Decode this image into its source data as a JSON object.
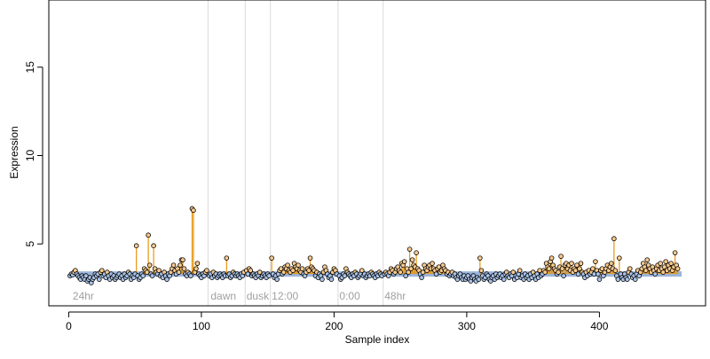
{
  "chart_data": {
    "type": "scatter",
    "xlabel": "Sample index",
    "ylabel": "Expression",
    "xlim": [
      -15,
      480
    ],
    "ylim": [
      1.5,
      18.8
    ],
    "x_ticks": [
      0,
      100,
      200,
      300,
      400
    ],
    "y_ticks": [
      5,
      10,
      15
    ],
    "baseline": 3.3,
    "baseline_color": "#7b9ccf",
    "stem_color": "#e8940f",
    "high_point_fill": "#f7c98e",
    "low_point_fill": "#a9c3e8",
    "vertical_lines": [
      105,
      133,
      152,
      203,
      237
    ],
    "region_labels": [
      {
        "x": 3,
        "text": "24hr"
      },
      {
        "x": 107,
        "text": "dawn"
      },
      {
        "x": 134,
        "text": "dusk"
      },
      {
        "x": 153,
        "text": "12:00"
      },
      {
        "x": 204,
        "text": "0:00"
      },
      {
        "x": 238,
        "text": "48hr"
      }
    ],
    "points": [
      [
        1,
        3.2
      ],
      [
        2,
        3.3
      ],
      [
        3,
        3.25
      ],
      [
        4,
        3.4
      ],
      [
        5,
        3.5
      ],
      [
        6,
        3.3
      ],
      [
        7,
        3.2
      ],
      [
        8,
        3.1
      ],
      [
        9,
        3.0
      ],
      [
        10,
        3.2
      ],
      [
        11,
        3.1
      ],
      [
        12,
        3.0
      ],
      [
        13,
        3.2
      ],
      [
        14,
        2.9
      ],
      [
        15,
        3.0
      ],
      [
        16,
        3.1
      ],
      [
        17,
        2.8
      ],
      [
        18,
        3.0
      ],
      [
        19,
        3.1
      ],
      [
        20,
        3.3
      ],
      [
        21,
        3.2
      ],
      [
        22,
        3.3
      ],
      [
        23,
        3.0
      ],
      [
        24,
        3.4
      ],
      [
        25,
        3.5
      ],
      [
        26,
        3.2
      ],
      [
        27,
        3.3
      ],
      [
        28,
        3.1
      ],
      [
        29,
        3.4
      ],
      [
        30,
        3.2
      ],
      [
        31,
        3.0
      ],
      [
        32,
        3.3
      ],
      [
        33,
        3.1
      ],
      [
        34,
        3.2
      ],
      [
        35,
        3.0
      ],
      [
        36,
        3.1
      ],
      [
        37,
        3.2
      ],
      [
        38,
        3.3
      ],
      [
        39,
        3.1
      ],
      [
        40,
        3.2
      ],
      [
        41,
        3.0
      ],
      [
        42,
        3.3
      ],
      [
        43,
        3.1
      ],
      [
        44,
        3.2
      ],
      [
        45,
        3.4
      ],
      [
        46,
        3.3
      ],
      [
        47,
        3.0
      ],
      [
        48,
        3.2
      ],
      [
        49,
        3.1
      ],
      [
        50,
        3.3
      ],
      [
        51,
        4.9
      ],
      [
        52,
        3.2
      ],
      [
        53,
        3.0
      ],
      [
        54,
        3.1
      ],
      [
        55,
        3.3
      ],
      [
        56,
        3.2
      ],
      [
        57,
        3.6
      ],
      [
        58,
        3.5
      ],
      [
        59,
        3.4
      ],
      [
        60,
        5.5
      ],
      [
        61,
        3.8
      ],
      [
        62,
        3.3
      ],
      [
        63,
        3.2
      ],
      [
        64,
        4.9
      ],
      [
        65,
        3.6
      ],
      [
        66,
        3.4
      ],
      [
        67,
        3.3
      ],
      [
        68,
        3.5
      ],
      [
        69,
        3.2
      ],
      [
        70,
        3.3
      ],
      [
        71,
        3.1
      ],
      [
        72,
        3.4
      ],
      [
        73,
        3.2
      ],
      [
        74,
        3.0
      ],
      [
        75,
        3.3
      ],
      [
        76,
        3.2
      ],
      [
        77,
        3.4
      ],
      [
        78,
        3.6
      ],
      [
        79,
        3.8
      ],
      [
        80,
        3.5
      ],
      [
        81,
        3.3
      ],
      [
        82,
        3.6
      ],
      [
        83,
        3.4
      ],
      [
        84,
        3.8
      ],
      [
        85,
        4.1
      ],
      [
        86,
        4.1
      ],
      [
        87,
        3.6
      ],
      [
        88,
        3.3
      ],
      [
        89,
        3.2
      ],
      [
        90,
        3.4
      ],
      [
        91,
        3.3
      ],
      [
        92,
        3.2
      ],
      [
        93,
        7.0
      ],
      [
        94,
        6.9
      ],
      [
        95,
        3.4
      ],
      [
        96,
        3.6
      ],
      [
        97,
        3.9
      ],
      [
        98,
        3.3
      ],
      [
        99,
        3.2
      ],
      [
        100,
        3.1
      ],
      [
        101,
        3.3
      ],
      [
        102,
        3.2
      ],
      [
        103,
        3.4
      ],
      [
        104,
        3.5
      ],
      [
        106,
        3.2
      ],
      [
        107,
        3.3
      ],
      [
        108,
        3.1
      ],
      [
        109,
        3.4
      ],
      [
        110,
        3.2
      ],
      [
        111,
        3.3
      ],
      [
        112,
        3.1
      ],
      [
        113,
        3.2
      ],
      [
        114,
        3.3
      ],
      [
        115,
        3.2
      ],
      [
        116,
        3.1
      ],
      [
        117,
        3.3
      ],
      [
        118,
        3.2
      ],
      [
        119,
        4.2
      ],
      [
        120,
        3.2
      ],
      [
        121,
        3.3
      ],
      [
        122,
        3.1
      ],
      [
        123,
        3.2
      ],
      [
        124,
        3.4
      ],
      [
        125,
        3.3
      ],
      [
        126,
        3.2
      ],
      [
        127,
        3.3
      ],
      [
        128,
        3.2
      ],
      [
        129,
        3.1
      ],
      [
        130,
        3.3
      ],
      [
        131,
        3.2
      ],
      [
        132,
        3.4
      ],
      [
        134,
        3.5
      ],
      [
        135,
        3.3
      ],
      [
        136,
        3.6
      ],
      [
        137,
        3.5
      ],
      [
        138,
        3.2
      ],
      [
        139,
        3.3
      ],
      [
        140,
        3.2
      ],
      [
        141,
        3.1
      ],
      [
        142,
        3.3
      ],
      [
        143,
        3.2
      ],
      [
        144,
        3.4
      ],
      [
        145,
        3.1
      ],
      [
        146,
        3.2
      ],
      [
        147,
        3.3
      ],
      [
        148,
        3.2
      ],
      [
        149,
        3.1
      ],
      [
        150,
        3.3
      ],
      [
        151,
        3.2
      ],
      [
        153,
        4.2
      ],
      [
        154,
        3.3
      ],
      [
        155,
        3.1
      ],
      [
        156,
        3.2
      ],
      [
        157,
        3.0
      ],
      [
        158,
        3.3
      ],
      [
        159,
        3.5
      ],
      [
        160,
        3.6
      ],
      [
        161,
        3.3
      ],
      [
        162,
        3.4
      ],
      [
        163,
        3.7
      ],
      [
        164,
        3.6
      ],
      [
        165,
        3.8
      ],
      [
        166,
        3.5
      ],
      [
        167,
        3.4
      ],
      [
        168,
        3.6
      ],
      [
        169,
        3.5
      ],
      [
        170,
        3.9
      ],
      [
        171,
        3.7
      ],
      [
        172,
        3.6
      ],
      [
        173,
        3.8
      ],
      [
        174,
        3.5
      ],
      [
        175,
        3.4
      ],
      [
        176,
        3.6
      ],
      [
        177,
        3.3
      ],
      [
        178,
        3.2
      ],
      [
        179,
        3.4
      ],
      [
        180,
        3.6
      ],
      [
        181,
        3.5
      ],
      [
        182,
        4.2
      ],
      [
        183,
        3.7
      ],
      [
        184,
        3.6
      ],
      [
        185,
        3.5
      ],
      [
        186,
        3.2
      ],
      [
        187,
        3.4
      ],
      [
        188,
        3.1
      ],
      [
        189,
        3.3
      ],
      [
        190,
        3.2
      ],
      [
        191,
        3.0
      ],
      [
        192,
        3.4
      ],
      [
        193,
        3.7
      ],
      [
        194,
        3.5
      ],
      [
        195,
        3.3
      ],
      [
        196,
        3.1
      ],
      [
        197,
        3.2
      ],
      [
        198,
        3.0
      ],
      [
        199,
        3.4
      ],
      [
        200,
        3.6
      ],
      [
        201,
        3.5
      ],
      [
        202,
        3.3
      ],
      [
        204,
        3.2
      ],
      [
        205,
        3.0
      ],
      [
        206,
        3.1
      ],
      [
        207,
        3.3
      ],
      [
        208,
        3.2
      ],
      [
        209,
        3.6
      ],
      [
        210,
        3.4
      ],
      [
        211,
        3.3
      ],
      [
        212,
        3.2
      ],
      [
        213,
        3.1
      ],
      [
        214,
        3.3
      ],
      [
        215,
        3.2
      ],
      [
        216,
        3.4
      ],
      [
        217,
        3.3
      ],
      [
        218,
        3.1
      ],
      [
        219,
        3.2
      ],
      [
        220,
        3.3
      ],
      [
        221,
        3.5
      ],
      [
        222,
        3.2
      ],
      [
        223,
        3.3
      ],
      [
        224,
        3.1
      ],
      [
        225,
        3.2
      ],
      [
        226,
        3.3
      ],
      [
        227,
        3.2
      ],
      [
        228,
        3.4
      ],
      [
        229,
        3.3
      ],
      [
        230,
        3.2
      ],
      [
        231,
        3.1
      ],
      [
        232,
        3.3
      ],
      [
        233,
        3.2
      ],
      [
        234,
        3.4
      ],
      [
        235,
        3.3
      ],
      [
        236,
        3.2
      ],
      [
        238,
        3.3
      ],
      [
        239,
        3.4
      ],
      [
        240,
        3.3
      ],
      [
        241,
        3.2
      ],
      [
        242,
        3.4
      ],
      [
        243,
        3.6
      ],
      [
        244,
        3.5
      ],
      [
        245,
        3.3
      ],
      [
        246,
        3.4
      ],
      [
        247,
        3.6
      ],
      [
        248,
        3.7
      ],
      [
        249,
        3.5
      ],
      [
        250,
        3.4
      ],
      [
        251,
        3.9
      ],
      [
        252,
        3.8
      ],
      [
        253,
        4.0
      ],
      [
        254,
        3.2
      ],
      [
        255,
        3.6
      ],
      [
        256,
        3.4
      ],
      [
        257,
        4.7
      ],
      [
        258,
        3.6
      ],
      [
        259,
        4.1
      ],
      [
        260,
        3.8
      ],
      [
        261,
        3.7
      ],
      [
        262,
        4.5
      ],
      [
        263,
        3.6
      ],
      [
        264,
        3.5
      ],
      [
        265,
        3.3
      ],
      [
        266,
        3.1
      ],
      [
        267,
        3.4
      ],
      [
        268,
        3.8
      ],
      [
        269,
        3.6
      ],
      [
        270,
        3.5
      ],
      [
        271,
        3.7
      ],
      [
        272,
        3.8
      ],
      [
        273,
        3.6
      ],
      [
        274,
        3.9
      ],
      [
        275,
        3.6
      ],
      [
        276,
        3.5
      ],
      [
        277,
        3.3
      ],
      [
        278,
        3.6
      ],
      [
        279,
        3.7
      ],
      [
        280,
        3.4
      ],
      [
        281,
        3.5
      ],
      [
        282,
        3.8
      ],
      [
        283,
        3.6
      ],
      [
        284,
        3.5
      ],
      [
        285,
        3.3
      ],
      [
        286,
        3.4
      ],
      [
        287,
        3.2
      ],
      [
        288,
        3.3
      ],
      [
        289,
        3.4
      ],
      [
        290,
        3.2
      ],
      [
        291,
        3.3
      ],
      [
        292,
        3.1
      ],
      [
        293,
        3.0
      ],
      [
        294,
        3.2
      ],
      [
        295,
        3.3
      ],
      [
        296,
        3.1
      ],
      [
        297,
        3.0
      ],
      [
        298,
        3.2
      ],
      [
        299,
        3.0
      ],
      [
        300,
        3.1
      ],
      [
        301,
        3.2
      ],
      [
        302,
        3.0
      ],
      [
        303,
        2.9
      ],
      [
        304,
        3.1
      ],
      [
        305,
        3.2
      ],
      [
        306,
        3.0
      ],
      [
        307,
        2.9
      ],
      [
        308,
        3.1
      ],
      [
        309,
        3.0
      ],
      [
        310,
        4.2
      ],
      [
        311,
        3.5
      ],
      [
        312,
        3.2
      ],
      [
        313,
        3.0
      ],
      [
        314,
        3.1
      ],
      [
        315,
        3.3
      ],
      [
        316,
        3.2
      ],
      [
        317,
        3.0
      ],
      [
        318,
        2.9
      ],
      [
        319,
        3.1
      ],
      [
        320,
        3.2
      ],
      [
        321,
        3.0
      ],
      [
        322,
        3.3
      ],
      [
        323,
        3.1
      ],
      [
        324,
        3.2
      ],
      [
        325,
        3.3
      ],
      [
        326,
        3.1
      ],
      [
        327,
        3.2
      ],
      [
        328,
        3.0
      ],
      [
        329,
        3.3
      ],
      [
        330,
        3.4
      ],
      [
        331,
        3.2
      ],
      [
        332,
        3.1
      ],
      [
        333,
        3.3
      ],
      [
        334,
        3.2
      ],
      [
        335,
        3.4
      ],
      [
        336,
        3.0
      ],
      [
        337,
        3.2
      ],
      [
        338,
        3.1
      ],
      [
        339,
        3.3
      ],
      [
        340,
        3.5
      ],
      [
        341,
        3.1
      ],
      [
        342,
        3.2
      ],
      [
        343,
        3.0
      ],
      [
        344,
        3.3
      ],
      [
        345,
        3.1
      ],
      [
        346,
        3.2
      ],
      [
        347,
        3.0
      ],
      [
        348,
        3.3
      ],
      [
        349,
        3.1
      ],
      [
        350,
        3.4
      ],
      [
        351,
        3.2
      ],
      [
        352,
        3.0
      ],
      [
        353,
        3.3
      ],
      [
        354,
        3.1
      ],
      [
        355,
        3.5
      ],
      [
        356,
        3.2
      ],
      [
        357,
        3.3
      ],
      [
        358,
        3.5
      ],
      [
        359,
        3.4
      ],
      [
        360,
        3.9
      ],
      [
        361,
        3.7
      ],
      [
        362,
        3.6
      ],
      [
        363,
        4.0
      ],
      [
        364,
        4.2
      ],
      [
        365,
        3.8
      ],
      [
        366,
        3.6
      ],
      [
        367,
        3.5
      ],
      [
        368,
        3.3
      ],
      [
        369,
        3.4
      ],
      [
        370,
        3.7
      ],
      [
        371,
        4.3
      ],
      [
        372,
        3.6
      ],
      [
        373,
        3.2
      ],
      [
        374,
        3.8
      ],
      [
        375,
        3.9
      ],
      [
        376,
        3.6
      ],
      [
        377,
        3.8
      ],
      [
        378,
        3.5
      ],
      [
        379,
        3.9
      ],
      [
        380,
        3.4
      ],
      [
        381,
        3.6
      ],
      [
        382,
        3.5
      ],
      [
        383,
        3.8
      ],
      [
        384,
        3.3
      ],
      [
        385,
        3.6
      ],
      [
        386,
        3.9
      ],
      [
        387,
        3.4
      ],
      [
        388,
        3.3
      ],
      [
        389,
        3.1
      ],
      [
        390,
        3.4
      ],
      [
        391,
        3.2
      ],
      [
        392,
        3.5
      ],
      [
        393,
        3.3
      ],
      [
        394,
        3.4
      ],
      [
        395,
        3.6
      ],
      [
        396,
        3.3
      ],
      [
        397,
        4.0
      ],
      [
        398,
        3.5
      ],
      [
        399,
        3.3
      ],
      [
        400,
        3.0
      ],
      [
        401,
        3.5
      ],
      [
        402,
        3.6
      ],
      [
        403,
        3.2
      ],
      [
        404,
        3.4
      ],
      [
        405,
        3.6
      ],
      [
        406,
        3.8
      ],
      [
        407,
        3.5
      ],
      [
        408,
        3.7
      ],
      [
        409,
        3.9
      ],
      [
        410,
        3.6
      ],
      [
        411,
        5.3
      ],
      [
        412,
        3.5
      ],
      [
        413,
        3.2
      ],
      [
        414,
        3.0
      ],
      [
        415,
        4.2
      ],
      [
        416,
        3.3
      ],
      [
        417,
        3.1
      ],
      [
        418,
        3.0
      ],
      [
        419,
        3.3
      ],
      [
        420,
        3.1
      ],
      [
        421,
        3.0
      ],
      [
        422,
        3.4
      ],
      [
        423,
        3.6
      ],
      [
        424,
        3.3
      ],
      [
        425,
        3.1
      ],
      [
        426,
        3.2
      ],
      [
        427,
        3.0
      ],
      [
        428,
        3.3
      ],
      [
        429,
        3.5
      ],
      [
        430,
        3.2
      ],
      [
        431,
        3.4
      ],
      [
        432,
        3.6
      ],
      [
        433,
        3.9
      ],
      [
        434,
        3.7
      ],
      [
        435,
        3.5
      ],
      [
        436,
        4.1
      ],
      [
        437,
        3.8
      ],
      [
        438,
        3.6
      ],
      [
        439,
        3.4
      ],
      [
        440,
        3.7
      ],
      [
        441,
        3.5
      ],
      [
        442,
        3.3
      ],
      [
        443,
        3.6
      ],
      [
        444,
        3.8
      ],
      [
        445,
        3.5
      ],
      [
        446,
        3.9
      ],
      [
        447,
        3.6
      ],
      [
        448,
        3.4
      ],
      [
        449,
        3.7
      ],
      [
        450,
        4.0
      ],
      [
        451,
        3.5
      ],
      [
        452,
        3.8
      ],
      [
        453,
        3.6
      ],
      [
        454,
        3.9
      ],
      [
        455,
        3.5
      ],
      [
        456,
        3.7
      ],
      [
        457,
        4.5
      ],
      [
        458,
        3.8
      ],
      [
        459,
        3.6
      ]
    ]
  }
}
